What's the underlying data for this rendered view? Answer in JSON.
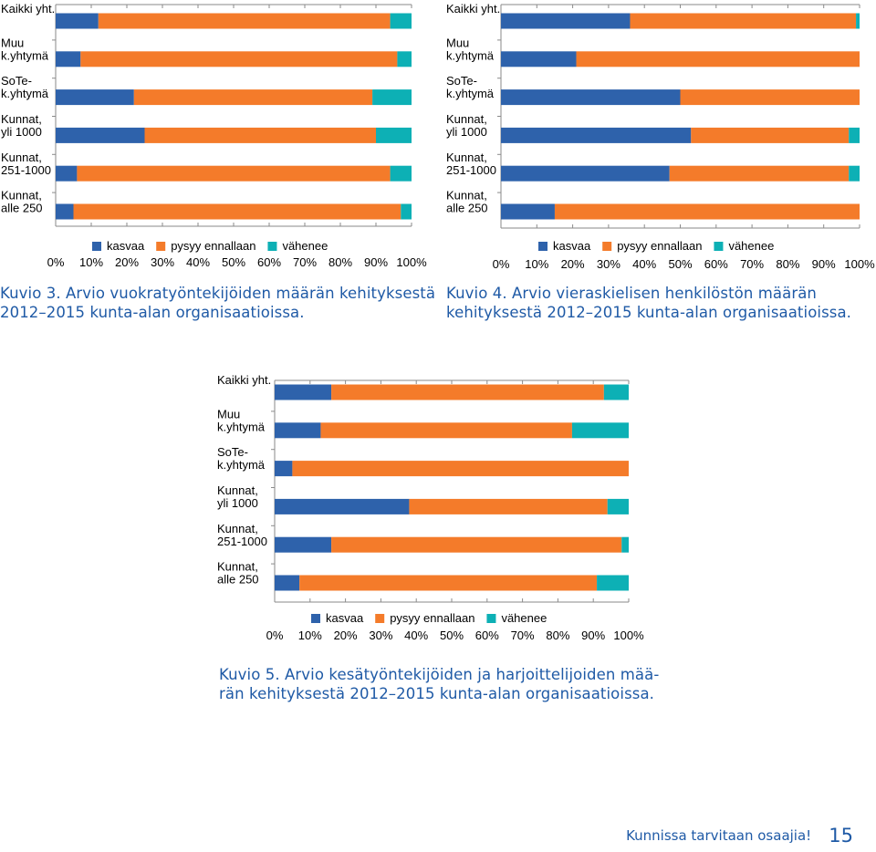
{
  "colors": {
    "kasvaa": "#2e62ab",
    "pysyy": "#f47b2a",
    "vahenee": "#0db0b5",
    "axis": "#8a8a8a",
    "caption": "#1f5aa6"
  },
  "chart_data": [
    {
      "type": "bar",
      "stacked": true,
      "orientation": "horizontal",
      "categories": [
        [
          "Kaikki yht."
        ],
        [
          "Muu",
          "k.yhtymä"
        ],
        [
          "SoTe-",
          "k.yhtymä"
        ],
        [
          "Kunnat,",
          "yli 1000"
        ],
        [
          "Kunnat,",
          "251-1000"
        ],
        [
          "Kunnat,",
          "alle 250"
        ]
      ],
      "series": [
        {
          "name": "kasvaa",
          "values": [
            12,
            7,
            22,
            25,
            6,
            5
          ]
        },
        {
          "name": "pysyy ennallaan",
          "values": [
            82,
            89,
            67,
            65,
            88,
            92
          ]
        },
        {
          "name": "vähenee",
          "values": [
            6,
            4,
            11,
            10,
            6,
            3
          ]
        }
      ],
      "xlim": [
        0,
        100
      ],
      "xticks": [
        "0%",
        "10%",
        "20%",
        "30%",
        "40%",
        "50%",
        "60%",
        "70%",
        "80%",
        "90%",
        "100%"
      ],
      "legend_position": "bottom",
      "caption": [
        "Kuvio 3. Arvio vuokratyöntekijöiden määrän kehityksestä",
        "2012–2015 kunta-alan organisaatioissa."
      ]
    },
    {
      "type": "bar",
      "stacked": true,
      "orientation": "horizontal",
      "categories": [
        [
          "Kaikki yht."
        ],
        [
          "Muu",
          "k.yhtymä"
        ],
        [
          "SoTe-",
          "k.yhtymä"
        ],
        [
          "Kunnat,",
          "yli 1000"
        ],
        [
          "Kunnat,",
          "251-1000"
        ],
        [
          "Kunnat,",
          "alle 250"
        ]
      ],
      "series": [
        {
          "name": "kasvaa",
          "values": [
            36,
            21,
            50,
            53,
            47,
            15
          ]
        },
        {
          "name": "pysyy ennallaan",
          "values": [
            63,
            79,
            50,
            44,
            50,
            85
          ]
        },
        {
          "name": "vähenee",
          "values": [
            1,
            0,
            0,
            3,
            3,
            0
          ]
        }
      ],
      "xlim": [
        0,
        100
      ],
      "xticks": [
        "0%",
        "10%",
        "20%",
        "30%",
        "40%",
        "50%",
        "60%",
        "70%",
        "80%",
        "90%",
        "100%"
      ],
      "legend_position": "bottom",
      "caption": [
        "Kuvio 4. Arvio vieraskielisen henkilöstön määrän",
        "kehityksestä 2012–2015 kunta-alan organisaatioissa."
      ]
    },
    {
      "type": "bar",
      "stacked": true,
      "orientation": "horizontal",
      "categories": [
        [
          "Kaikki yht."
        ],
        [
          "Muu",
          "k.yhtymä"
        ],
        [
          "SoTe-",
          "k.yhtymä"
        ],
        [
          "Kunnat,",
          "yli 1000"
        ],
        [
          "Kunnat,",
          "251-1000"
        ],
        [
          "Kunnat,",
          "alle 250"
        ]
      ],
      "series": [
        {
          "name": "kasvaa",
          "values": [
            16,
            13,
            5,
            38,
            16,
            7
          ]
        },
        {
          "name": "pysyy ennallaan",
          "values": [
            77,
            71,
            95,
            56,
            82,
            84
          ]
        },
        {
          "name": "vähenee",
          "values": [
            7,
            16,
            0,
            6,
            2,
            9
          ]
        }
      ],
      "xlim": [
        0,
        100
      ],
      "xticks": [
        "0%",
        "10%",
        "20%",
        "30%",
        "40%",
        "50%",
        "60%",
        "70%",
        "80%",
        "90%",
        "100%"
      ],
      "legend_position": "bottom",
      "caption": [
        "Kuvio 5. Arvio kesätyöntekijöiden ja harjoittelijoiden mää-",
        "rän kehityksestä 2012–2015 kunta-alan organisaatioissa."
      ]
    }
  ],
  "footer": {
    "text": "Kunnissa tarvitaan osaajia!",
    "page": "15"
  }
}
